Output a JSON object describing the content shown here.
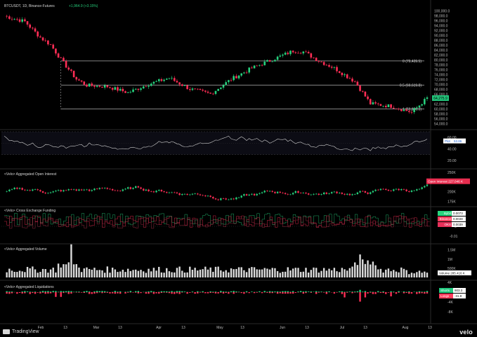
{
  "header": {
    "symbol": "BTCUSDT, 1D, Binance-Futures",
    "change": "+1,964.9 (+3.15%)"
  },
  "price_axis": [
    "100,000.0",
    "98,000.0",
    "96,000.0",
    "94,000.0",
    "92,000.0",
    "90,000.0",
    "88,000.0",
    "86,000.0",
    "84,000.0",
    "82,000.0",
    "80,000.0",
    "78,000.0",
    "76,000.0",
    "74,000.0",
    "72,000.0",
    "70,000.0",
    "68,000.0",
    "66,000.0",
    "64,000.0",
    "62,000.0",
    "60,000.0",
    "58,000.0",
    "56,000.0",
    "54,000.0"
  ],
  "fib_levels": [
    {
      "label": "0 (79,439.5)",
      "value": 79439.5
    },
    {
      "label": "0.5 (69,619.8)",
      "value": 69619.8
    },
    {
      "label": "1 (59,800.0)",
      "value": 59800
    }
  ],
  "last_price": "64,275.9",
  "rsi": {
    "title": "RSI",
    "ticks": [
      "60.00",
      "40.00",
      "20.00"
    ],
    "badges": [
      {
        "label": "Plot",
        "value": "53.86"
      }
    ]
  },
  "open_interest": {
    "title": "<Velo> Aggregated Open Interest",
    "ticks": [
      "250K",
      "200K",
      "175K"
    ],
    "badge": "Open Interest  227.046 K"
  },
  "funding": {
    "title": "<Velo> Cross Exchange Funding",
    "ticks": [
      "0",
      "-0.01"
    ],
    "badges": [
      {
        "label": "Bybit",
        "value": "0.0073",
        "color": "#2ad47e"
      },
      {
        "label": "Binance",
        "value": "0.0048",
        "color": "#ff3b5c"
      },
      {
        "label": "OKX",
        "value": "0.0039",
        "color": "#e8305a"
      }
    ]
  },
  "volume": {
    "title": "<Velo> Aggregated Volume",
    "ticks": [
      "1.5M",
      "1M",
      "500K"
    ],
    "badge": "Volume  285.416 K"
  },
  "liquidations": {
    "title": "<Velo> Aggregated Liquidations",
    "ticks": [
      "4K",
      "-4K",
      "-8K"
    ],
    "badges": [
      {
        "label": "Shorts",
        "value": "903.3",
        "color": "#22c97f"
      },
      {
        "label": "Longs",
        "value": "-31.8",
        "color": "#ff3b5c"
      }
    ]
  },
  "time_axis": [
    "Feb",
    "13",
    "Mar",
    "13",
    "Apr",
    "13",
    "May",
    "13",
    "Jun",
    "13",
    "Jul",
    "13",
    "Aug",
    "13"
  ],
  "footer": {
    "brand": "TradingView",
    "velo": "velo"
  },
  "colors": {
    "up": "#26d07c",
    "down": "#ff2d55",
    "line": "#d0d0d0",
    "bg": "#000000",
    "grid": "#1c1c1c"
  }
}
